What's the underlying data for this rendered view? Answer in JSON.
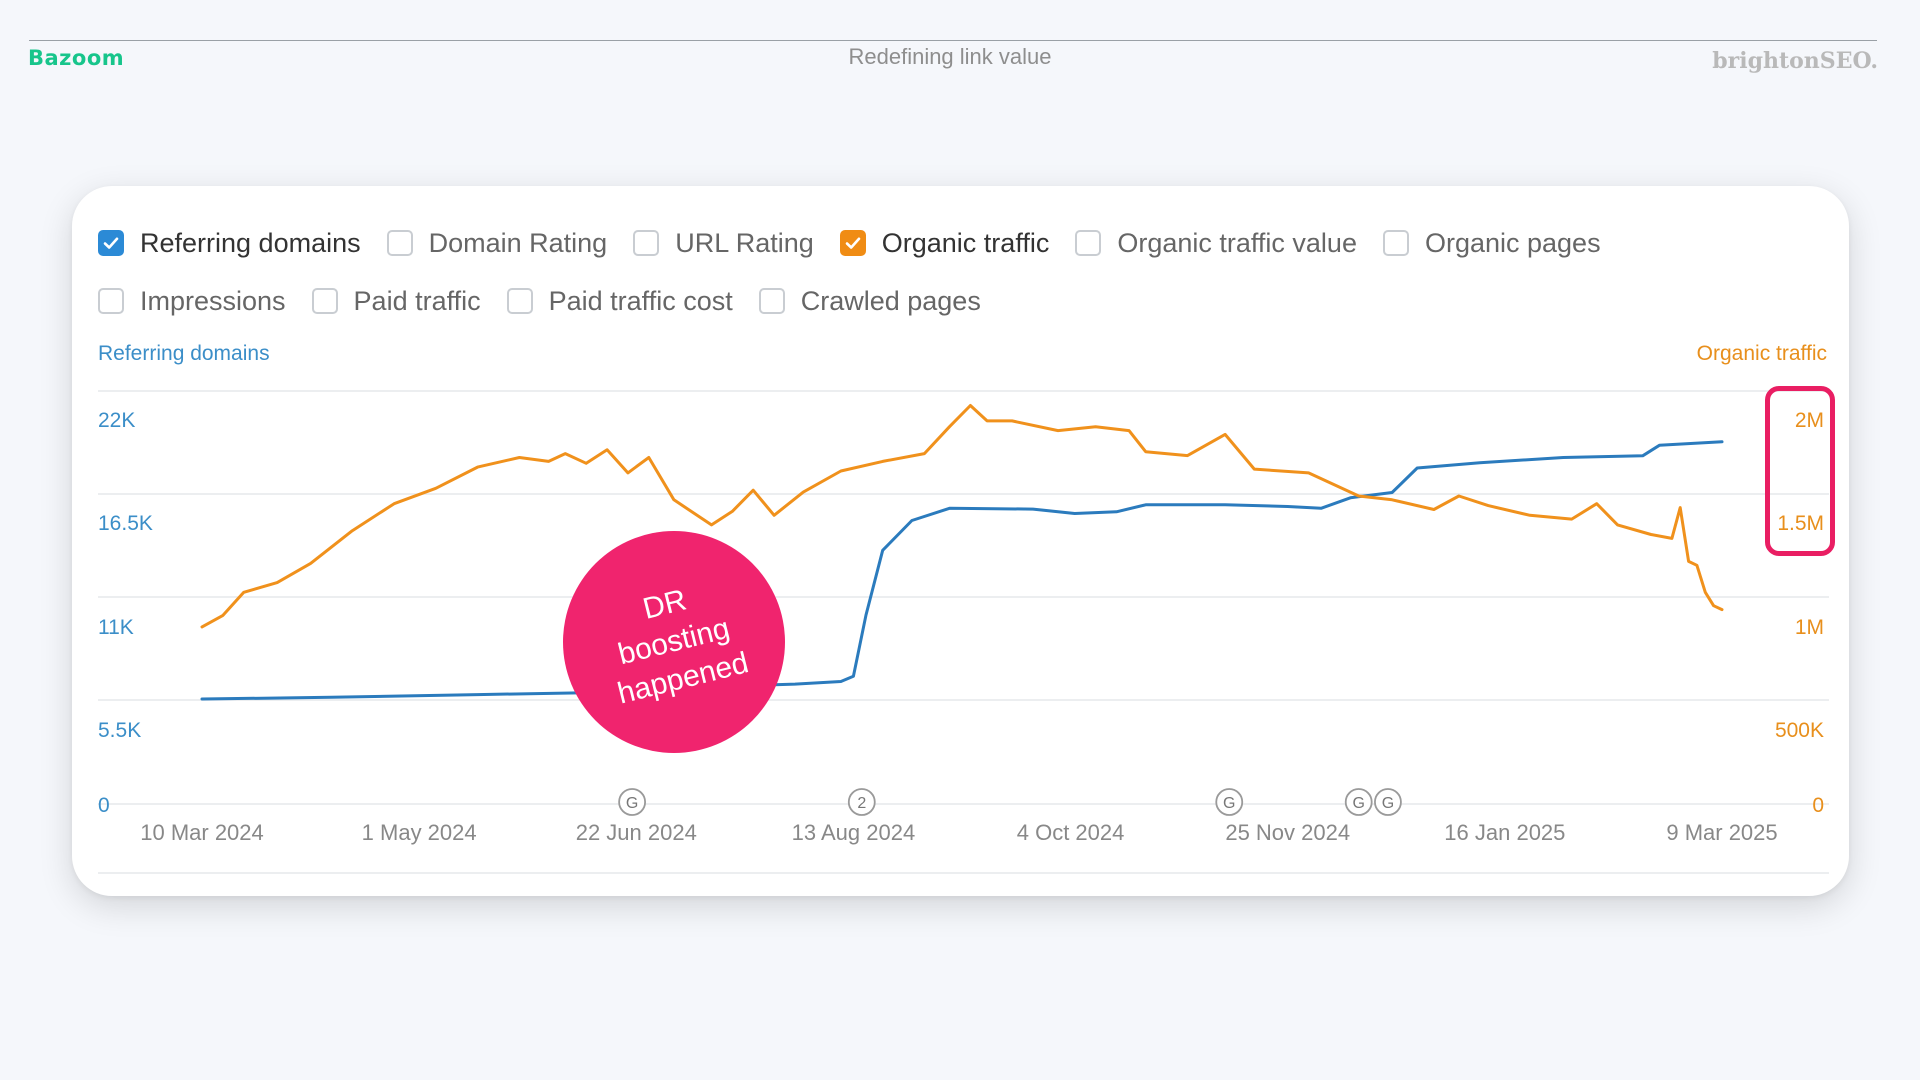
{
  "header": {
    "brand_left": "Bazoom",
    "title": "Redefining link value",
    "brand_right": "brightonSEO."
  },
  "metrics": {
    "row1": [
      {
        "label": "Referring domains",
        "checked": true,
        "color": "#2b8ad6"
      },
      {
        "label": "Domain Rating",
        "checked": false
      },
      {
        "label": "URL Rating",
        "checked": false
      },
      {
        "label": "Organic traffic",
        "checked": true,
        "color": "#f08c14"
      },
      {
        "label": "Organic traffic value",
        "checked": false
      },
      {
        "label": "Organic pages",
        "checked": false
      }
    ],
    "row2": [
      {
        "label": "Impressions",
        "checked": false
      },
      {
        "label": "Paid traffic",
        "checked": false
      },
      {
        "label": "Paid traffic cost",
        "checked": false
      },
      {
        "label": "Crawled pages",
        "checked": false
      }
    ]
  },
  "annotation": {
    "badge_text": "DR\nboosting\nhappened",
    "badge_color": "#f0246e",
    "highlight_color": "#e91e63"
  },
  "chart_data": {
    "type": "line",
    "left_axis_title": "Referring domains",
    "right_axis_title": "Organic traffic",
    "left_ticks": [
      "0",
      "5.5K",
      "11K",
      "16.5K",
      "22K"
    ],
    "right_ticks": [
      "0",
      "500K",
      "1M",
      "1.5M",
      "2M"
    ],
    "left_ylim": [
      0,
      22000
    ],
    "right_ylim": [
      0,
      2000000
    ],
    "x_tick_labels": [
      "10 Mar 2024",
      "1 May 2024",
      "22 Jun 2024",
      "13 Aug 2024",
      "4 Oct 2024",
      "25 Nov 2024",
      "16 Jan 2025",
      "9 Mar 2025"
    ],
    "x_tick_dates": [
      "2024-03-10",
      "2024-05-01",
      "2024-06-22",
      "2024-08-13",
      "2024-10-04",
      "2024-11-25",
      "2025-01-16",
      "2025-03-09"
    ],
    "xlim": [
      "2024-03-10",
      "2025-03-09"
    ],
    "grid": true,
    "event_markers": [
      {
        "date": "2024-06-21",
        "label": "G"
      },
      {
        "date": "2024-08-15",
        "label": "2"
      },
      {
        "date": "2024-11-11",
        "label": "G"
      },
      {
        "date": "2024-12-12",
        "label": "G"
      },
      {
        "date": "2024-12-19",
        "label": "G"
      }
    ],
    "series": [
      {
        "name": "Referring domains",
        "axis": "left",
        "color": "#2b7bbd",
        "points": [
          [
            "2024-03-10",
            6000
          ],
          [
            "2024-04-10",
            6100
          ],
          [
            "2024-05-15",
            6250
          ],
          [
            "2024-06-20",
            6400
          ],
          [
            "2024-07-10",
            6700
          ],
          [
            "2024-07-30",
            6850
          ],
          [
            "2024-08-10",
            7000
          ],
          [
            "2024-08-13",
            7300
          ],
          [
            "2024-08-16",
            10800
          ],
          [
            "2024-08-20",
            14500
          ],
          [
            "2024-08-27",
            16200
          ],
          [
            "2024-09-05",
            16900
          ],
          [
            "2024-09-25",
            16850
          ],
          [
            "2024-10-05",
            16600
          ],
          [
            "2024-10-15",
            16700
          ],
          [
            "2024-10-22",
            17100
          ],
          [
            "2024-11-10",
            17100
          ],
          [
            "2024-11-25",
            17000
          ],
          [
            "2024-12-03",
            16900
          ],
          [
            "2024-12-10",
            17500
          ],
          [
            "2024-12-20",
            17800
          ],
          [
            "2024-12-26",
            19200
          ],
          [
            "2025-01-10",
            19500
          ],
          [
            "2025-01-30",
            19800
          ],
          [
            "2025-02-18",
            19900
          ],
          [
            "2025-02-22",
            20500
          ],
          [
            "2025-03-09",
            20700
          ]
        ]
      },
      {
        "name": "Organic traffic",
        "axis": "right",
        "color": "#f0911c",
        "points": [
          [
            "2024-03-10",
            920000
          ],
          [
            "2024-03-15",
            980000
          ],
          [
            "2024-03-20",
            1100000
          ],
          [
            "2024-03-28",
            1150000
          ],
          [
            "2024-04-05",
            1250000
          ],
          [
            "2024-04-15",
            1420000
          ],
          [
            "2024-04-25",
            1560000
          ],
          [
            "2024-05-05",
            1640000
          ],
          [
            "2024-05-15",
            1750000
          ],
          [
            "2024-05-25",
            1800000
          ],
          [
            "2024-06-01",
            1780000
          ],
          [
            "2024-06-05",
            1820000
          ],
          [
            "2024-06-10",
            1770000
          ],
          [
            "2024-06-15",
            1840000
          ],
          [
            "2024-06-20",
            1720000
          ],
          [
            "2024-06-25",
            1800000
          ],
          [
            "2024-07-01",
            1580000
          ],
          [
            "2024-07-10",
            1450000
          ],
          [
            "2024-07-15",
            1520000
          ],
          [
            "2024-07-20",
            1630000
          ],
          [
            "2024-07-25",
            1500000
          ],
          [
            "2024-08-01",
            1620000
          ],
          [
            "2024-08-10",
            1730000
          ],
          [
            "2024-08-20",
            1780000
          ],
          [
            "2024-08-30",
            1820000
          ],
          [
            "2024-09-05",
            1960000
          ],
          [
            "2024-09-10",
            2070000
          ],
          [
            "2024-09-14",
            1990000
          ],
          [
            "2024-09-20",
            1990000
          ],
          [
            "2024-10-01",
            1940000
          ],
          [
            "2024-10-10",
            1960000
          ],
          [
            "2024-10-18",
            1940000
          ],
          [
            "2024-10-22",
            1830000
          ],
          [
            "2024-11-01",
            1810000
          ],
          [
            "2024-11-10",
            1920000
          ],
          [
            "2024-11-17",
            1740000
          ],
          [
            "2024-11-30",
            1720000
          ],
          [
            "2024-12-12",
            1600000
          ],
          [
            "2024-12-20",
            1580000
          ],
          [
            "2024-12-30",
            1530000
          ],
          [
            "2025-01-05",
            1600000
          ],
          [
            "2025-01-12",
            1550000
          ],
          [
            "2025-01-22",
            1500000
          ],
          [
            "2025-02-01",
            1480000
          ],
          [
            "2025-02-07",
            1560000
          ],
          [
            "2025-02-12",
            1450000
          ],
          [
            "2025-02-20",
            1400000
          ],
          [
            "2025-02-25",
            1380000
          ],
          [
            "2025-02-27",
            1540000
          ],
          [
            "2025-03-01",
            1260000
          ],
          [
            "2025-03-03",
            1240000
          ],
          [
            "2025-03-05",
            1100000
          ],
          [
            "2025-03-07",
            1030000
          ],
          [
            "2025-03-09",
            1010000
          ]
        ]
      }
    ]
  }
}
